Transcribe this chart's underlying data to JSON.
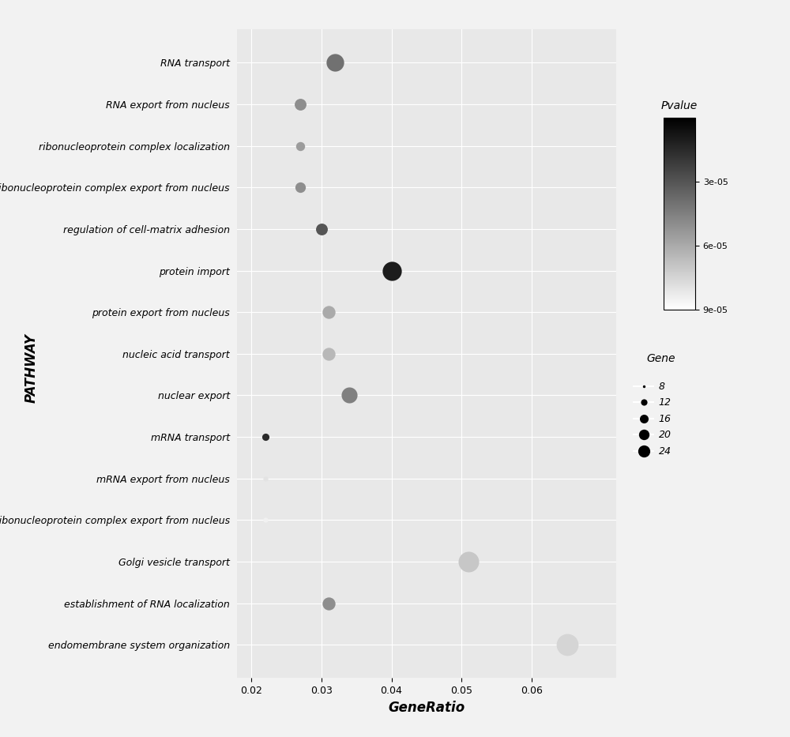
{
  "pathways": [
    "RNA transport",
    "RNA export from nucleus",
    "ribonucleoprotein complex localization",
    "ribonucleoprotein complex export from nucleus",
    "regulation of cell-matrix adhesion",
    "protein import",
    "protein export from nucleus",
    "nucleic acid transport",
    "nuclear export",
    "mRNA transport",
    "mRNA export from nucleus",
    "mRNA-containing ribonucleoprotein complex export from nucleus",
    "Golgi vesicle transport",
    "establishment of RNA localization",
    "endomembrane system organization"
  ],
  "gene_ratio": [
    0.032,
    0.027,
    0.027,
    0.027,
    0.03,
    0.04,
    0.031,
    0.031,
    0.034,
    0.022,
    0.022,
    0.022,
    0.051,
    0.031,
    0.065
  ],
  "pvalue": [
    4e-05,
    5e-05,
    5.5e-05,
    5e-05,
    3e-05,
    1e-05,
    6e-05,
    6.5e-05,
    4.5e-05,
    1.5e-05,
    8e-05,
    8.5e-05,
    7e-05,
    5e-05,
    7.5e-05
  ],
  "gene_count": [
    18,
    12,
    10,
    11,
    12,
    20,
    13,
    13,
    16,
    9,
    8,
    8,
    22,
    13,
    24
  ],
  "pvalue_min": 1e-05,
  "pvalue_max": 9e-05,
  "xlabel": "GeneRatio",
  "ylabel": "PATHWAY",
  "colorbar_label": "Pvalue",
  "colorbar_ticks": [
    9e-05,
    6e-05,
    3e-05
  ],
  "colorbar_ticklabels": [
    "9e-05",
    "6e-05",
    "3e-05"
  ],
  "legend_gene_sizes": [
    8,
    12,
    16,
    20,
    24
  ],
  "legend_gene_label": "Gene",
  "plot_bg_color": "#e8e8e8",
  "fig_bg_color": "#f2f2f2",
  "grid_color": "#ffffff",
  "dot_edgecolor": "none",
  "font_style": "italic"
}
